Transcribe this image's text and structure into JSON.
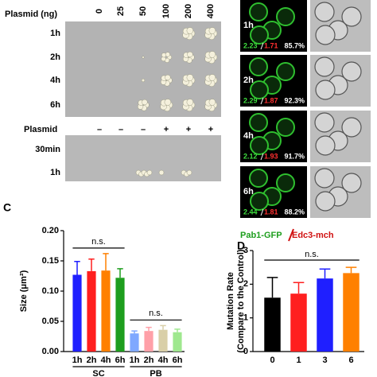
{
  "figure": {
    "plate": {
      "axis_label": "Plasmid (ng)",
      "columns": [
        "0",
        "25",
        "50",
        "100",
        "200",
        "400"
      ],
      "rows": [
        "1h",
        "2h",
        "4h",
        "6h"
      ]
    },
    "plate2": {
      "axis_label": "Plasmid",
      "columns": [
        "–",
        "–",
        "–",
        "+",
        "+",
        "+"
      ],
      "rows": [
        "30min",
        "1h"
      ]
    },
    "microscopy": {
      "rows": [
        {
          "label": "1h",
          "green": "2.23",
          "red": "1.71",
          "percent": "85.7%"
        },
        {
          "label": "2h",
          "green": "2.29",
          "red": "1.87",
          "percent": "92.3%"
        },
        {
          "label": "4h",
          "green": "2.12",
          "red": "1.93",
          "percent": "91.7%"
        },
        {
          "label": "6h",
          "green": "2.44",
          "red": "1.81",
          "percent": "88.2%"
        }
      ],
      "legend_green": "Pab1-GFP",
      "legend_red": "Edc3-mch"
    },
    "panel_letters": [
      "C",
      "D"
    ]
  },
  "chart_data": [
    {
      "type": "bar",
      "ylabel": "Size (μm²)",
      "categories": [
        "1h",
        "2h",
        "4h",
        "6h",
        "1h",
        "2h",
        "4h",
        "6h"
      ],
      "groups": [
        "SC",
        "PB"
      ],
      "values": [
        0.127,
        0.133,
        0.134,
        0.122,
        0.03,
        0.034,
        0.036,
        0.032
      ],
      "errors": [
        0.022,
        0.02,
        0.028,
        0.015,
        0.004,
        0.006,
        0.007,
        0.005
      ],
      "colors": [
        "#1f1fff",
        "#ff1f1f",
        "#ff8000",
        "#1e9e1e",
        "#7fa8ff",
        "#ffa0a8",
        "#d9cfa8",
        "#9fe88f"
      ],
      "ylim": [
        0,
        0.2
      ],
      "yticks": [
        {
          "value": 0,
          "label": "0.00"
        },
        {
          "value": 0.05,
          "label": "0.05"
        },
        {
          "value": 0.1,
          "label": "0.10"
        },
        {
          "value": 0.15,
          "label": "0.15"
        },
        {
          "value": 0.2,
          "label": "0.20"
        }
      ],
      "annotations": [
        "n.s.",
        "n.s."
      ]
    },
    {
      "type": "bar",
      "ylabel": "Mutation Rate",
      "ylabel2": "(Compare to the Control)",
      "categories": [
        "0",
        "1",
        "3",
        "6"
      ],
      "values": [
        1.6,
        1.72,
        2.17,
        2.33
      ],
      "errors": [
        0.6,
        0.33,
        0.28,
        0.17
      ],
      "colors": [
        "#000000",
        "#ff1f1f",
        "#1f1fff",
        "#ff8000"
      ],
      "ylim": [
        0,
        3
      ],
      "yticks": [
        0,
        1,
        2,
        3
      ],
      "annotations": [
        "n.s."
      ]
    }
  ]
}
